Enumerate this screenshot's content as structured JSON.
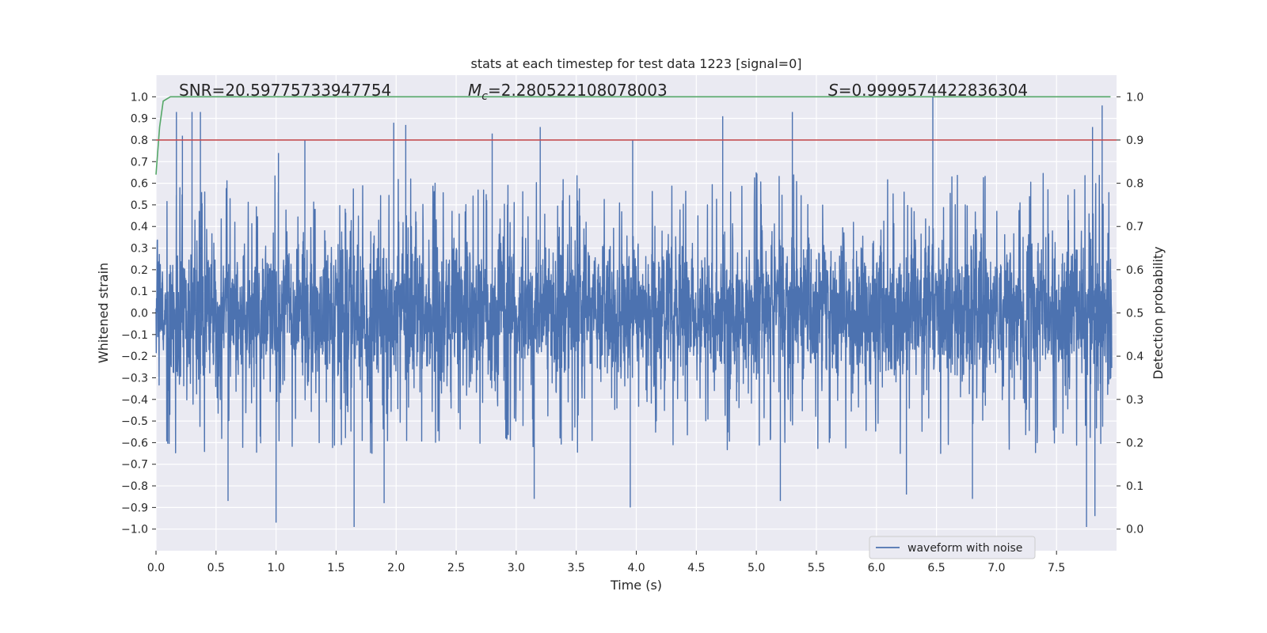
{
  "chart_data": {
    "type": "line",
    "title": "stats at each timestep for test data 1223 [signal=0]",
    "xlabel": "Time (s)",
    "ylabel": "Whitened strain",
    "ylabel_right": "Detection probability",
    "xlim": [
      0.0,
      8.0
    ],
    "ylim": [
      -1.1,
      1.1
    ],
    "ylim_right": [
      -0.05,
      1.05
    ],
    "x_ticks": [
      "0.0",
      "0.5",
      "1.0",
      "1.5",
      "2.0",
      "2.5",
      "3.0",
      "3.5",
      "4.0",
      "4.5",
      "5.0",
      "5.5",
      "6.0",
      "6.5",
      "7.0",
      "7.5"
    ],
    "y_ticks": [
      "1.0",
      "0.9",
      "0.8",
      "0.7",
      "0.6",
      "0.5",
      "0.4",
      "0.3",
      "0.2",
      "0.1",
      "0.0",
      "−0.1",
      "−0.2",
      "−0.3",
      "−0.4",
      "−0.5",
      "−0.6",
      "−0.7",
      "−0.8",
      "−0.9",
      "−1.0"
    ],
    "y_ticks_right": [
      "1.0",
      "0.9",
      "0.8",
      "0.7",
      "0.6",
      "0.5",
      "0.4",
      "0.3",
      "0.2",
      "0.1",
      "0.0"
    ],
    "annotations": {
      "snr": {
        "prefix": "SNR=",
        "value": "20.59775733947754"
      },
      "mc": {
        "symbol": "M",
        "subscript": "c",
        "value": "=2.280522108078003"
      },
      "s": {
        "symbol": "S",
        "value": "=0.9999574422836304"
      }
    },
    "series": [
      {
        "name": "waveform with noise",
        "axis": "left",
        "color": "#4c72b0",
        "description": "dense whitened strain noise, amplitude roughly within [-1.0, 1.0]",
        "envelope_peaks_x": [
          0.17,
          0.22,
          0.3,
          0.37,
          1.02,
          1.24,
          1.98,
          2.08,
          2.8,
          3.2,
          3.97,
          4.72,
          5.3,
          6.47,
          7.8,
          7.88
        ],
        "envelope_peaks_y": [
          0.93,
          0.82,
          0.93,
          0.93,
          0.74,
          0.8,
          0.88,
          0.87,
          0.83,
          0.86,
          0.8,
          0.91,
          0.93,
          1.0,
          0.86,
          0.96
        ],
        "envelope_troughs_x": [
          0.6,
          1.0,
          1.65,
          1.9,
          3.15,
          3.95,
          5.2,
          6.25,
          6.8,
          7.75,
          7.82
        ],
        "envelope_troughs_y": [
          -0.87,
          -0.97,
          -0.99,
          -0.88,
          -0.86,
          -0.9,
          -0.87,
          -0.84,
          -0.86,
          -0.99,
          -0.94
        ]
      },
      {
        "name": "detection probability",
        "axis": "right",
        "color": "#55a868",
        "x": [
          0.0,
          0.03,
          0.06,
          0.12,
          7.95
        ],
        "values": [
          0.82,
          0.93,
          0.99,
          1.0,
          1.0
        ]
      },
      {
        "name": "threshold",
        "axis": "right",
        "color": "#c44e52",
        "x": [
          0.0,
          8.0
        ],
        "values": [
          0.9,
          0.9
        ]
      }
    ],
    "legend": {
      "location": "lower-right",
      "entries": [
        "waveform with noise"
      ]
    },
    "grid": true,
    "background": "#eaeaf2"
  }
}
